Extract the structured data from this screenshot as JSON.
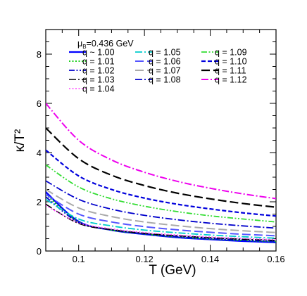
{
  "chart_data": {
    "type": "line",
    "xlabel": "T (GeV)",
    "ylabel": "κ/T²",
    "xlim": [
      0.09,
      0.16
    ],
    "ylim": [
      0,
      9
    ],
    "xticks": [
      0.1,
      0.12,
      0.14,
      0.16
    ],
    "xtick_labels": [
      "0.1",
      "0.12",
      "0.14",
      "0.16"
    ],
    "yticks": [
      0,
      2,
      4,
      6,
      8
    ],
    "ytick_labels": [
      "0",
      "2",
      "4",
      "6",
      "8"
    ],
    "annotation": "μB=0.436 GeV",
    "annotation_main": "μ",
    "annotation_sub": "B",
    "annotation_rest": "=0.436 GeV",
    "legend_placement": "top",
    "grid": false,
    "x": [
      0.09,
      0.1,
      0.11,
      0.12,
      0.13,
      0.14,
      0.15,
      0.16
    ],
    "series": [
      {
        "name": "q ~ 1.00",
        "color": "#0000ff",
        "dash": "solid",
        "width": 2.2,
        "values": [
          2.4,
          1.2,
          0.85,
          0.68,
          0.55,
          0.47,
          0.4,
          0.35
        ]
      },
      {
        "name": "q = 1.01",
        "color": "#00cc00",
        "dash": "dot",
        "width": 1.8,
        "values": [
          2.3,
          1.18,
          0.85,
          0.69,
          0.57,
          0.49,
          0.43,
          0.38
        ]
      },
      {
        "name": "q = 1.02",
        "color": "#0000cc",
        "dash": "dashdotdot",
        "width": 1.8,
        "values": [
          2.2,
          1.16,
          0.86,
          0.7,
          0.59,
          0.51,
          0.45,
          0.4
        ]
      },
      {
        "name": "q = 1.03",
        "color": "#000000",
        "dash": "dashdot",
        "width": 1.6,
        "values": [
          1.9,
          1.12,
          0.87,
          0.72,
          0.62,
          0.54,
          0.48,
          0.43
        ]
      },
      {
        "name": "q = 1.04",
        "color": "#ff44ff",
        "dash": "dot",
        "width": 1.6,
        "values": [
          1.85,
          1.15,
          0.9,
          0.75,
          0.65,
          0.57,
          0.51,
          0.46
        ]
      },
      {
        "name": "q = 1.05",
        "color": "#00cccc",
        "dash": "dashdot",
        "width": 1.8,
        "values": [
          2.1,
          1.3,
          1.02,
          0.85,
          0.74,
          0.65,
          0.58,
          0.52
        ]
      },
      {
        "name": "q = 1.06",
        "color": "#5555ff",
        "dash": "longdash",
        "width": 2.0,
        "values": [
          2.3,
          1.5,
          1.18,
          0.99,
          0.86,
          0.76,
          0.68,
          0.62
        ]
      },
      {
        "name": "q = 1.07",
        "color": "#aaaaaa",
        "dash": "longdash",
        "width": 2.0,
        "values": [
          2.5,
          1.75,
          1.4,
          1.18,
          1.03,
          0.91,
          0.82,
          0.75
        ]
      },
      {
        "name": "q = 1.08",
        "color": "#0000cc",
        "dash": "dashdot",
        "width": 1.8,
        "values": [
          2.85,
          2.1,
          1.7,
          1.45,
          1.27,
          1.13,
          1.02,
          0.93
        ]
      },
      {
        "name": "q = 1.09",
        "color": "#33dd33",
        "dash": "dashdotdot",
        "width": 1.8,
        "values": [
          3.5,
          2.6,
          2.12,
          1.82,
          1.6,
          1.43,
          1.3,
          1.18
        ]
      },
      {
        "name": "q = 1.10",
        "color": "#0000dd",
        "dash": "dash",
        "width": 2.2,
        "values": [
          4.1,
          3.05,
          2.5,
          2.15,
          1.9,
          1.71,
          1.55,
          1.42
        ]
      },
      {
        "name": "q = 1.11",
        "color": "#000000",
        "dash": "longdash",
        "width": 2.2,
        "values": [
          5.0,
          3.75,
          3.08,
          2.66,
          2.35,
          2.12,
          1.93,
          1.78
        ]
      },
      {
        "name": "q = 1.12",
        "color": "#ee00ee",
        "dash": "dashdot",
        "width": 2.0,
        "values": [
          6.0,
          4.5,
          3.7,
          3.2,
          2.83,
          2.55,
          2.32,
          2.13
        ]
      }
    ]
  }
}
